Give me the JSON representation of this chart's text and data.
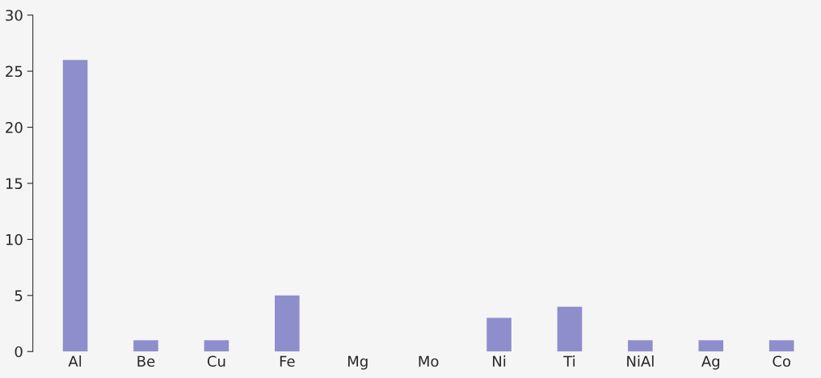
{
  "chart_data": {
    "type": "bar",
    "categories": [
      "Al",
      "Be",
      "Cu",
      "Fe",
      "Mg",
      "Mo",
      "Ni",
      "Ti",
      "NiAl",
      "Ag",
      "Co"
    ],
    "values": [
      26,
      1,
      1,
      5,
      0,
      0,
      3,
      4,
      1,
      1,
      1
    ],
    "color": "#8e8ecc",
    "ylim": [
      0,
      30
    ],
    "yticks": [
      0,
      5,
      10,
      15,
      20,
      25,
      30
    ],
    "grid": false
  }
}
